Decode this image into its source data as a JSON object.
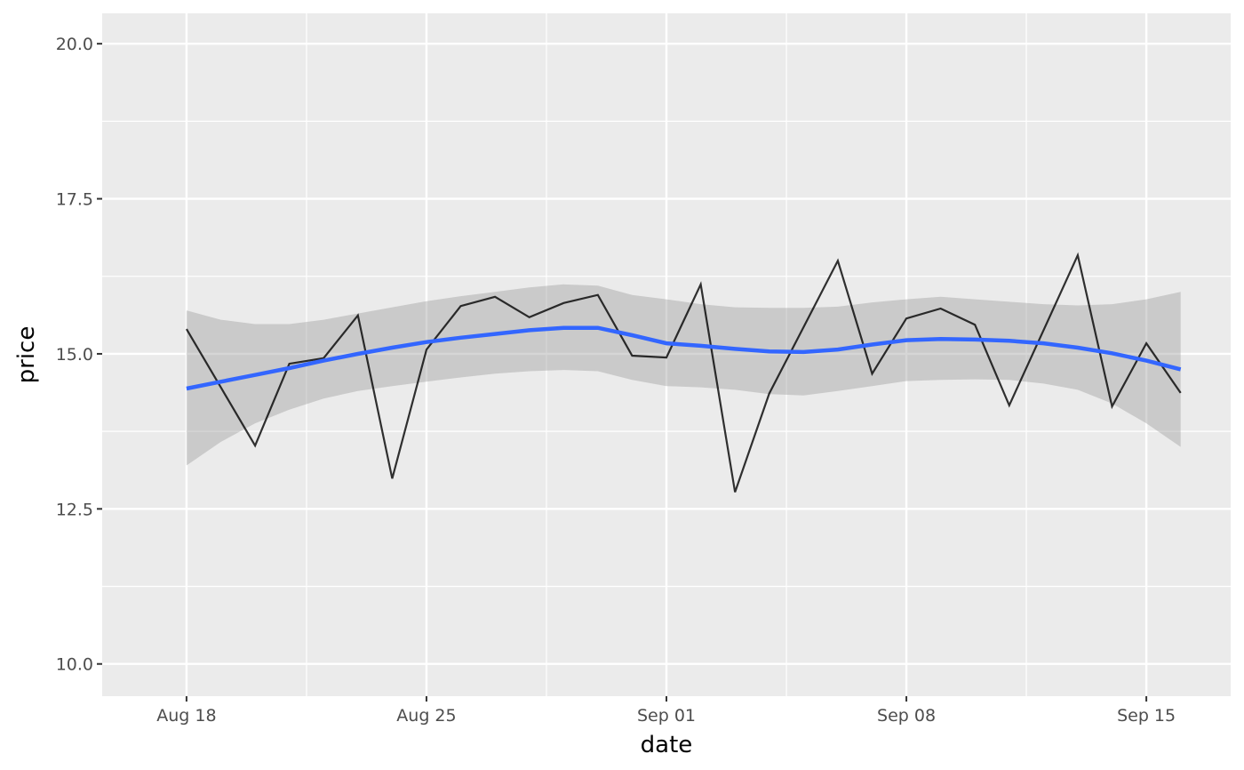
{
  "chart_data": {
    "type": "line",
    "title": "",
    "xlabel": "date",
    "ylabel": "price",
    "ylim": [
      9.48,
      20.49
    ],
    "xlim_days_from_start": [
      -2.46,
      30.46
    ],
    "grid": true,
    "x_tick_labels": [
      {
        "label": "Aug 18",
        "day": 0
      },
      {
        "label": "Aug 25",
        "day": 7
      },
      {
        "label": "Sep 01",
        "day": 14
      },
      {
        "label": "Sep 08",
        "day": 21
      },
      {
        "label": "Sep 15",
        "day": 28
      }
    ],
    "y_ticks": [
      10.0,
      12.5,
      15.0,
      17.5,
      20.0
    ],
    "y_tick_labels": [
      "10.0",
      "12.5",
      "15.0",
      "17.5",
      "20.0"
    ],
    "x": [
      "2024-08-18",
      "08-19",
      "08-20",
      "08-21",
      "08-22",
      "08-23",
      "08-24",
      "08-25",
      "08-26",
      "08-27",
      "08-28",
      "08-29",
      "08-30",
      "08-31",
      "09-01",
      "09-02",
      "09-03",
      "09-04",
      "09-05",
      "09-06",
      "09-07",
      "09-08",
      "09-09",
      "09-10",
      "09-11",
      "09-12",
      "09-13",
      "09-14",
      "09-15",
      "09-16"
    ],
    "series": [
      {
        "name": "price",
        "color": "#000000",
        "values": [
          15.4,
          14.46,
          13.52,
          14.84,
          14.93,
          15.62,
          12.99,
          15.07,
          15.77,
          15.92,
          15.59,
          15.82,
          15.95,
          14.97,
          14.94,
          16.12,
          12.77,
          14.36,
          15.43,
          16.5,
          14.68,
          15.57,
          15.73,
          15.47,
          14.17,
          15.38,
          16.59,
          14.15,
          15.17,
          14.37
        ]
      },
      {
        "name": "smooth",
        "color": "#3366FF",
        "values": [
          14.44,
          14.55,
          14.66,
          14.77,
          14.89,
          15.0,
          15.1,
          15.19,
          15.26,
          15.32,
          15.38,
          15.42,
          15.42,
          15.3,
          15.17,
          15.13,
          15.08,
          15.04,
          15.03,
          15.07,
          15.15,
          15.22,
          15.24,
          15.23,
          15.21,
          15.17,
          15.1,
          15.01,
          14.89,
          14.75
        ],
        "upper": [
          15.7,
          15.55,
          15.48,
          15.48,
          15.55,
          15.65,
          15.75,
          15.85,
          15.93,
          16.0,
          16.07,
          16.12,
          16.1,
          15.95,
          15.88,
          15.8,
          15.75,
          15.74,
          15.74,
          15.76,
          15.83,
          15.88,
          15.92,
          15.88,
          15.84,
          15.8,
          15.78,
          15.8,
          15.88,
          16.0
        ],
        "lower": [
          13.2,
          13.58,
          13.88,
          14.1,
          14.28,
          14.4,
          14.48,
          14.55,
          14.62,
          14.68,
          14.72,
          14.74,
          14.72,
          14.58,
          14.48,
          14.46,
          14.42,
          14.35,
          14.33,
          14.4,
          14.48,
          14.56,
          14.58,
          14.59,
          14.58,
          14.52,
          14.42,
          14.2,
          13.88,
          13.5
        ]
      }
    ],
    "colors": {
      "panel": "#EBEBEB",
      "grid": "#FFFFFF",
      "band": "#999999"
    }
  }
}
